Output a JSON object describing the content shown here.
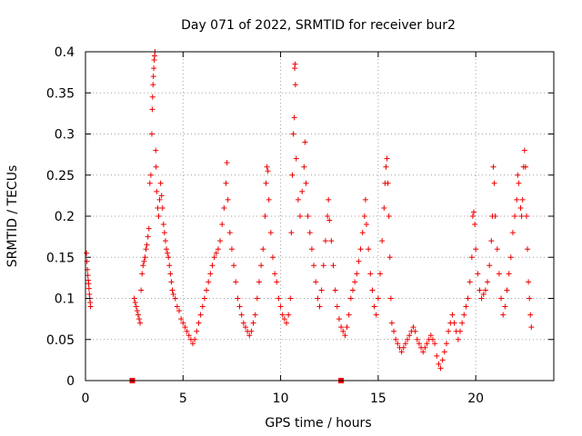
{
  "chart_data": {
    "type": "scatter",
    "title": "Day 071 of 2022, SRMTID for receiver bur2",
    "xlabel": "GPS time / hours",
    "ylabel": "SRMTID / TECUs",
    "xlim": [
      0,
      24
    ],
    "ylim": [
      0,
      0.4
    ],
    "grid": true,
    "marker": "plus",
    "x_ticks": [
      0,
      5,
      10,
      15,
      20
    ],
    "x_tick_labels": [
      "0",
      "5",
      "10",
      "15",
      "20"
    ],
    "y_ticks": [
      0,
      0.05,
      0.1,
      0.15,
      0.2,
      0.25,
      0.3,
      0.35,
      0.4
    ],
    "y_tick_labels": [
      "0",
      "0.05",
      "0.1",
      "0.15",
      "0.2",
      "0.25",
      "0.3",
      "0.35",
      "0.4"
    ],
    "series": [
      {
        "name": "SRMTID",
        "color": "#ee0000",
        "points": [
          [
            0.05,
            0.155
          ],
          [
            0.08,
            0.145
          ],
          [
            0.1,
            0.135
          ],
          [
            0.12,
            0.128
          ],
          [
            0.14,
            0.122
          ],
          [
            0.16,
            0.118
          ],
          [
            0.18,
            0.112
          ],
          [
            0.2,
            0.105
          ],
          [
            0.22,
            0.1
          ],
          [
            0.24,
            0.095
          ],
          [
            0.26,
            0.09
          ],
          [
            2.5,
            0.1
          ],
          [
            2.55,
            0.095
          ],
          [
            2.6,
            0.09
          ],
          [
            2.65,
            0.085
          ],
          [
            2.7,
            0.08
          ],
          [
            2.75,
            0.075
          ],
          [
            2.8,
            0.07
          ],
          [
            2.85,
            0.11
          ],
          [
            2.9,
            0.13
          ],
          [
            2.95,
            0.14
          ],
          [
            3.0,
            0.145
          ],
          [
            3.05,
            0.15
          ],
          [
            3.1,
            0.16
          ],
          [
            3.15,
            0.165
          ],
          [
            3.2,
            0.175
          ],
          [
            3.25,
            0.185
          ],
          [
            3.3,
            0.24
          ],
          [
            3.35,
            0.25
          ],
          [
            3.4,
            0.3
          ],
          [
            3.42,
            0.33
          ],
          [
            3.44,
            0.345
          ],
          [
            3.46,
            0.36
          ],
          [
            3.48,
            0.37
          ],
          [
            3.5,
            0.38
          ],
          [
            3.52,
            0.39
          ],
          [
            3.54,
            0.395
          ],
          [
            3.56,
            0.4
          ],
          [
            3.6,
            0.28
          ],
          [
            3.62,
            0.26
          ],
          [
            3.65,
            0.23
          ],
          [
            3.7,
            0.21
          ],
          [
            3.75,
            0.2
          ],
          [
            3.8,
            0.22
          ],
          [
            3.85,
            0.24
          ],
          [
            3.9,
            0.225
          ],
          [
            3.95,
            0.21
          ],
          [
            4.0,
            0.19
          ],
          [
            4.05,
            0.18
          ],
          [
            4.1,
            0.17
          ],
          [
            4.15,
            0.16
          ],
          [
            4.2,
            0.155
          ],
          [
            4.25,
            0.15
          ],
          [
            4.3,
            0.14
          ],
          [
            4.35,
            0.13
          ],
          [
            4.4,
            0.12
          ],
          [
            4.45,
            0.11
          ],
          [
            4.5,
            0.105
          ],
          [
            4.6,
            0.1
          ],
          [
            4.7,
            0.09
          ],
          [
            4.8,
            0.085
          ],
          [
            4.9,
            0.075
          ],
          [
            5.0,
            0.07
          ],
          [
            5.1,
            0.065
          ],
          [
            5.2,
            0.06
          ],
          [
            5.3,
            0.055
          ],
          [
            5.4,
            0.05
          ],
          [
            5.5,
            0.045
          ],
          [
            5.6,
            0.05
          ],
          [
            5.7,
            0.06
          ],
          [
            5.8,
            0.07
          ],
          [
            5.9,
            0.08
          ],
          [
            6.0,
            0.09
          ],
          [
            6.1,
            0.1
          ],
          [
            6.2,
            0.11
          ],
          [
            6.3,
            0.12
          ],
          [
            6.4,
            0.13
          ],
          [
            6.5,
            0.14
          ],
          [
            6.6,
            0.15
          ],
          [
            6.7,
            0.155
          ],
          [
            6.8,
            0.16
          ],
          [
            6.9,
            0.17
          ],
          [
            7.0,
            0.19
          ],
          [
            7.1,
            0.21
          ],
          [
            7.2,
            0.24
          ],
          [
            7.25,
            0.265
          ],
          [
            7.3,
            0.22
          ],
          [
            7.4,
            0.18
          ],
          [
            7.5,
            0.16
          ],
          [
            7.6,
            0.14
          ],
          [
            7.7,
            0.12
          ],
          [
            7.8,
            0.1
          ],
          [
            7.9,
            0.09
          ],
          [
            8.0,
            0.08
          ],
          [
            8.1,
            0.07
          ],
          [
            8.2,
            0.065
          ],
          [
            8.3,
            0.06
          ],
          [
            8.4,
            0.055
          ],
          [
            8.5,
            0.06
          ],
          [
            8.6,
            0.07
          ],
          [
            8.7,
            0.08
          ],
          [
            8.8,
            0.1
          ],
          [
            8.9,
            0.12
          ],
          [
            9.0,
            0.14
          ],
          [
            9.1,
            0.16
          ],
          [
            9.2,
            0.2
          ],
          [
            9.25,
            0.24
          ],
          [
            9.3,
            0.26
          ],
          [
            9.35,
            0.255
          ],
          [
            9.4,
            0.22
          ],
          [
            9.5,
            0.18
          ],
          [
            9.6,
            0.15
          ],
          [
            9.7,
            0.13
          ],
          [
            9.8,
            0.12
          ],
          [
            9.9,
            0.1
          ],
          [
            10.0,
            0.09
          ],
          [
            10.1,
            0.08
          ],
          [
            10.2,
            0.075
          ],
          [
            10.3,
            0.07
          ],
          [
            10.4,
            0.08
          ],
          [
            10.5,
            0.1
          ],
          [
            10.55,
            0.18
          ],
          [
            10.6,
            0.25
          ],
          [
            10.65,
            0.3
          ],
          [
            10.7,
            0.32
          ],
          [
            10.72,
            0.38
          ],
          [
            10.74,
            0.385
          ],
          [
            10.76,
            0.36
          ],
          [
            10.8,
            0.27
          ],
          [
            10.9,
            0.22
          ],
          [
            11.0,
            0.2
          ],
          [
            11.1,
            0.23
          ],
          [
            11.2,
            0.26
          ],
          [
            11.25,
            0.29
          ],
          [
            11.3,
            0.24
          ],
          [
            11.4,
            0.2
          ],
          [
            11.5,
            0.18
          ],
          [
            11.6,
            0.16
          ],
          [
            11.7,
            0.14
          ],
          [
            11.8,
            0.12
          ],
          [
            11.9,
            0.1
          ],
          [
            12.0,
            0.09
          ],
          [
            12.1,
            0.11
          ],
          [
            12.2,
            0.14
          ],
          [
            12.3,
            0.17
          ],
          [
            12.4,
            0.2
          ],
          [
            12.45,
            0.22
          ],
          [
            12.5,
            0.195
          ],
          [
            12.6,
            0.17
          ],
          [
            12.7,
            0.14
          ],
          [
            12.8,
            0.11
          ],
          [
            12.9,
            0.09
          ],
          [
            13.0,
            0.075
          ],
          [
            13.1,
            0.065
          ],
          [
            13.2,
            0.06
          ],
          [
            13.3,
            0.055
          ],
          [
            13.4,
            0.065
          ],
          [
            13.5,
            0.08
          ],
          [
            13.6,
            0.1
          ],
          [
            13.7,
            0.11
          ],
          [
            13.8,
            0.12
          ],
          [
            13.9,
            0.13
          ],
          [
            14.0,
            0.145
          ],
          [
            14.1,
            0.16
          ],
          [
            14.2,
            0.18
          ],
          [
            14.3,
            0.2
          ],
          [
            14.35,
            0.22
          ],
          [
            14.4,
            0.19
          ],
          [
            14.5,
            0.16
          ],
          [
            14.6,
            0.13
          ],
          [
            14.7,
            0.11
          ],
          [
            14.8,
            0.09
          ],
          [
            14.9,
            0.08
          ],
          [
            15.0,
            0.1
          ],
          [
            15.1,
            0.13
          ],
          [
            15.2,
            0.17
          ],
          [
            15.3,
            0.21
          ],
          [
            15.35,
            0.24
          ],
          [
            15.4,
            0.26
          ],
          [
            15.45,
            0.27
          ],
          [
            15.5,
            0.24
          ],
          [
            15.55,
            0.2
          ],
          [
            15.6,
            0.15
          ],
          [
            15.65,
            0.1
          ],
          [
            15.7,
            0.07
          ],
          [
            15.8,
            0.06
          ],
          [
            15.9,
            0.05
          ],
          [
            16.0,
            0.045
          ],
          [
            16.1,
            0.04
          ],
          [
            16.2,
            0.035
          ],
          [
            16.3,
            0.04
          ],
          [
            16.4,
            0.045
          ],
          [
            16.5,
            0.05
          ],
          [
            16.6,
            0.055
          ],
          [
            16.7,
            0.06
          ],
          [
            16.8,
            0.065
          ],
          [
            16.9,
            0.06
          ],
          [
            17.0,
            0.05
          ],
          [
            17.1,
            0.045
          ],
          [
            17.2,
            0.04
          ],
          [
            17.3,
            0.035
          ],
          [
            17.4,
            0.04
          ],
          [
            17.5,
            0.045
          ],
          [
            17.6,
            0.05
          ],
          [
            17.7,
            0.055
          ],
          [
            17.8,
            0.05
          ],
          [
            17.9,
            0.045
          ],
          [
            18.0,
            0.03
          ],
          [
            18.1,
            0.02
          ],
          [
            18.2,
            0.015
          ],
          [
            18.3,
            0.025
          ],
          [
            18.4,
            0.035
          ],
          [
            18.5,
            0.045
          ],
          [
            18.6,
            0.06
          ],
          [
            18.7,
            0.07
          ],
          [
            18.8,
            0.08
          ],
          [
            18.9,
            0.07
          ],
          [
            19.0,
            0.06
          ],
          [
            19.1,
            0.05
          ],
          [
            19.2,
            0.06
          ],
          [
            19.3,
            0.07
          ],
          [
            19.4,
            0.08
          ],
          [
            19.5,
            0.09
          ],
          [
            19.6,
            0.1
          ],
          [
            19.7,
            0.12
          ],
          [
            19.8,
            0.15
          ],
          [
            19.85,
            0.2
          ],
          [
            19.9,
            0.205
          ],
          [
            19.95,
            0.19
          ],
          [
            20.0,
            0.16
          ],
          [
            20.1,
            0.13
          ],
          [
            20.2,
            0.11
          ],
          [
            20.3,
            0.1
          ],
          [
            20.4,
            0.105
          ],
          [
            20.5,
            0.11
          ],
          [
            20.6,
            0.12
          ],
          [
            20.7,
            0.14
          ],
          [
            20.8,
            0.17
          ],
          [
            20.85,
            0.2
          ],
          [
            20.9,
            0.26
          ],
          [
            20.95,
            0.24
          ],
          [
            21.0,
            0.2
          ],
          [
            21.1,
            0.16
          ],
          [
            21.2,
            0.13
          ],
          [
            21.3,
            0.1
          ],
          [
            21.4,
            0.08
          ],
          [
            21.5,
            0.09
          ],
          [
            21.6,
            0.11
          ],
          [
            21.7,
            0.13
          ],
          [
            21.8,
            0.15
          ],
          [
            21.9,
            0.18
          ],
          [
            22.0,
            0.2
          ],
          [
            22.1,
            0.22
          ],
          [
            22.15,
            0.25
          ],
          [
            22.2,
            0.24
          ],
          [
            22.3,
            0.21
          ],
          [
            22.35,
            0.2
          ],
          [
            22.4,
            0.22
          ],
          [
            22.45,
            0.26
          ],
          [
            22.5,
            0.28
          ],
          [
            22.55,
            0.26
          ],
          [
            22.6,
            0.2
          ],
          [
            22.65,
            0.16
          ],
          [
            22.7,
            0.12
          ],
          [
            22.75,
            0.1
          ],
          [
            22.8,
            0.08
          ],
          [
            22.85,
            0.065
          ]
        ]
      },
      {
        "name": "gap markers",
        "color": "#ee0000",
        "marker": "square",
        "points": [
          [
            2.4,
            0.0
          ],
          [
            13.1,
            0.0
          ]
        ]
      }
    ]
  }
}
